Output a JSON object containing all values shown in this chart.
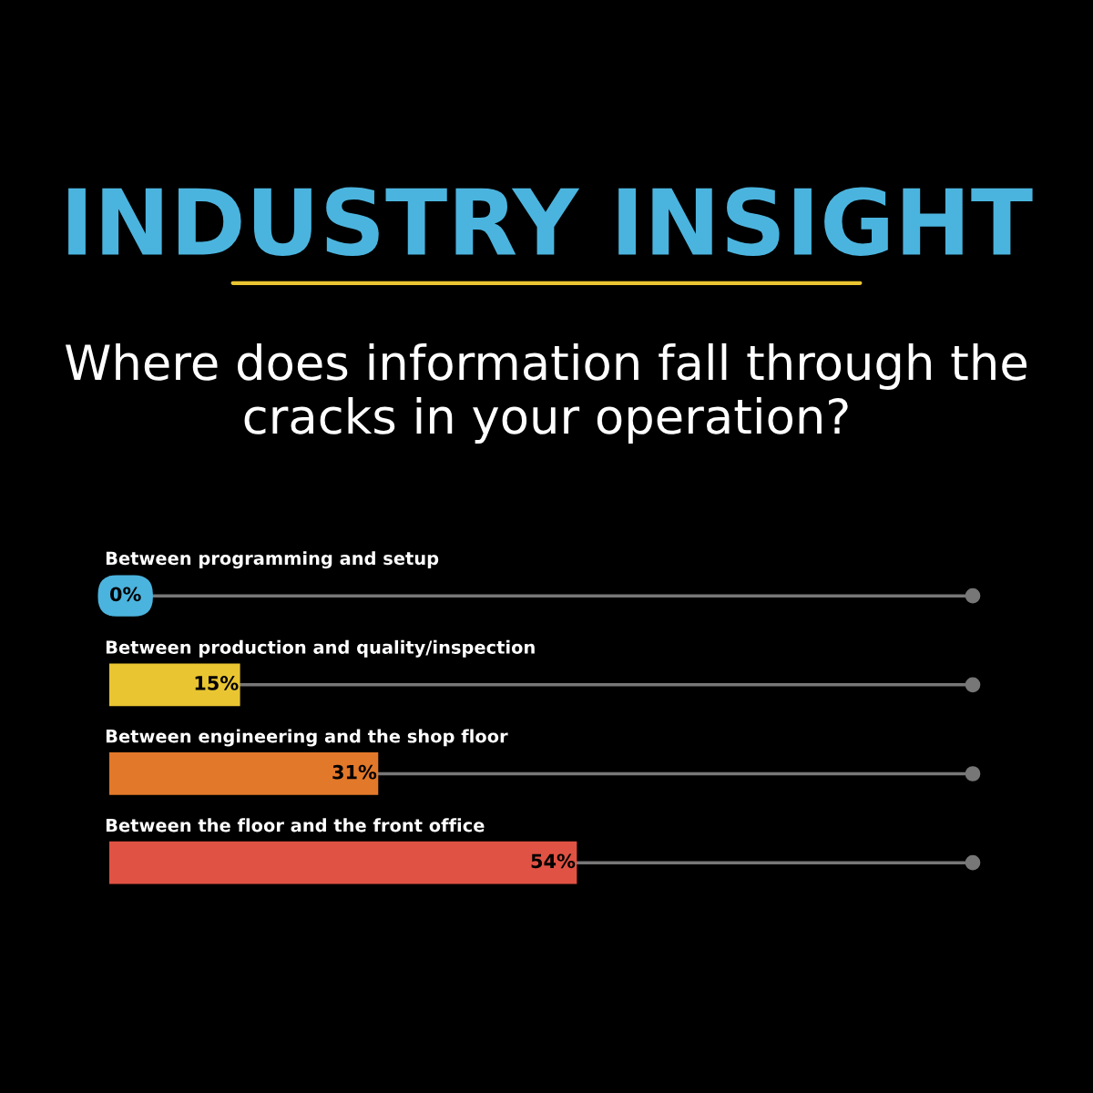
{
  "chart_data": {
    "type": "bar",
    "orientation": "horizontal",
    "title": "INDUSTRY INSIGHT",
    "subtitle": "Where does information fall through the cracks in your operation?",
    "categories": [
      "Between programming and setup",
      "Between production and quality/inspection",
      "Between engineering and the shop floor",
      "Between the floor and the front office"
    ],
    "values": [
      0,
      15,
      31,
      54
    ],
    "colors": [
      "#4bb4de",
      "#e9c532",
      "#e2782a",
      "#e05243"
    ],
    "value_labels": [
      "0%",
      "15%",
      "31%",
      "54%"
    ],
    "xlim": [
      0,
      100
    ],
    "tick_labels": "y"
  }
}
